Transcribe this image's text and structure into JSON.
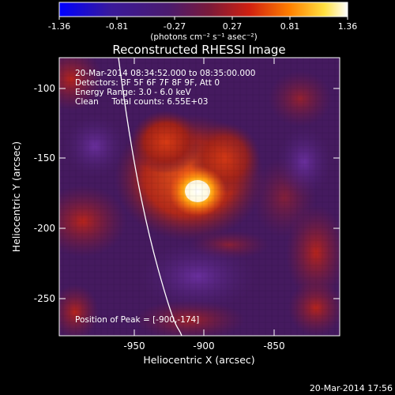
{
  "colorbar": {
    "tick_labels": [
      "-1.36",
      "-0.81",
      "-0.27",
      "0.27",
      "0.81",
      "1.36"
    ],
    "unit_label": "(photons cm⁻² s⁻¹ asec⁻²)",
    "colors": [
      "#0000ff",
      "#3a1a9a",
      "#4b1b6e",
      "#7a1a3a",
      "#d02010",
      "#ff8000",
      "#ffe040",
      "#ffffff"
    ]
  },
  "plot": {
    "title": "Reconstructed RHESSI Image",
    "xlabel": "Heliocentric X (arcsec)",
    "ylabel": "Heliocentric Y (arcsec)",
    "x_ticks": [
      "-950",
      "-900",
      "-850"
    ],
    "y_ticks": [
      "-100",
      "-150",
      "-200",
      "-250"
    ],
    "info_lines": [
      "20-Mar-2014 08:34:52.000 to 08:35:00.000",
      "Detectors: 3F 5F 6F 7F 8F 9F, Att 0",
      "Energy Range: 3.0 - 6.0 keV",
      "Clean     Total counts: 6.55E+03"
    ],
    "peak_label": "Position of Peak = [-900,-174]"
  },
  "footer": {
    "timestamp": "20-Mar-2014 17:56"
  }
}
